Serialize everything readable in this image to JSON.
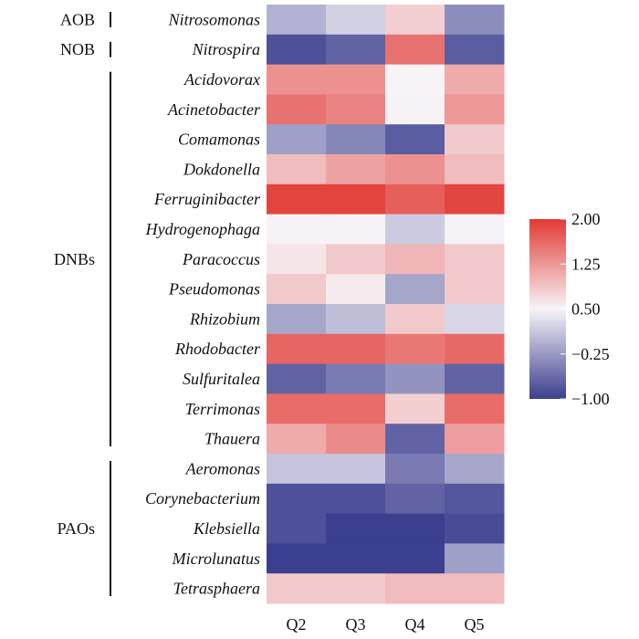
{
  "chart_data": {
    "type": "heatmap",
    "columns": [
      "Q2",
      "Q3",
      "Q4",
      "Q5"
    ],
    "groups": [
      {
        "label": "AOB",
        "rows": [
          "Nitrosomonas"
        ]
      },
      {
        "label": "NOB",
        "rows": [
          "Nitrospira"
        ]
      },
      {
        "label": "DNBs",
        "rows": [
          "Acidovorax",
          "Acinetobacter",
          "Comamonas",
          "Dokdonella",
          "Ferruginibacter",
          "Hydrogenophaga",
          "Paracoccus",
          "Pseudomonas",
          "Rhizobium",
          "Rhodobacter",
          "Sulfuritalea",
          "Terrimonas",
          "Thauera"
        ]
      },
      {
        "label": "PAOs",
        "rows": [
          "Aeromonas",
          "Corynebacterium",
          "Klebsiella",
          "Microlunatus",
          "Tetrasphaera"
        ]
      }
    ],
    "values": [
      [
        -0.05,
        0.2,
        0.8,
        -0.35
      ],
      [
        -0.85,
        -0.7,
        1.55,
        -0.75
      ],
      [
        1.3,
        1.3,
        0.5,
        1.1
      ],
      [
        1.55,
        1.4,
        0.52,
        1.25
      ],
      [
        -0.2,
        -0.4,
        -0.75,
        0.85
      ],
      [
        0.95,
        1.15,
        1.3,
        0.95
      ],
      [
        1.92,
        1.92,
        1.7,
        1.9
      ],
      [
        0.52,
        0.52,
        0.15,
        0.48
      ],
      [
        0.62,
        0.85,
        1.0,
        0.85
      ],
      [
        0.85,
        0.58,
        -0.15,
        0.85
      ],
      [
        -0.15,
        0.05,
        0.85,
        0.25
      ],
      [
        1.65,
        1.65,
        1.5,
        1.62
      ],
      [
        -0.7,
        -0.5,
        -0.3,
        -0.7
      ],
      [
        1.6,
        1.6,
        0.8,
        1.6
      ],
      [
        1.1,
        1.35,
        -0.7,
        1.2
      ],
      [
        0.1,
        0.1,
        -0.5,
        -0.15
      ],
      [
        -0.85,
        -0.85,
        -0.7,
        -0.8
      ],
      [
        -0.85,
        -1.0,
        -1.0,
        -0.9
      ],
      [
        -1.0,
        -1.0,
        -1.0,
        -0.2
      ],
      [
        0.85,
        0.85,
        0.95,
        0.95
      ]
    ],
    "colorbar": {
      "min": -1.0,
      "max": 2.0,
      "mid": 0.5,
      "ticks": [
        "2.00",
        "1.25",
        "0.50",
        "−0.25",
        "−1.00"
      ],
      "tick_values": [
        2.0,
        1.25,
        0.5,
        -0.25,
        -1.0
      ]
    },
    "colors": {
      "low": "#3b3f8f",
      "mid": "#f7f4f8",
      "high": "#e23a34"
    }
  }
}
